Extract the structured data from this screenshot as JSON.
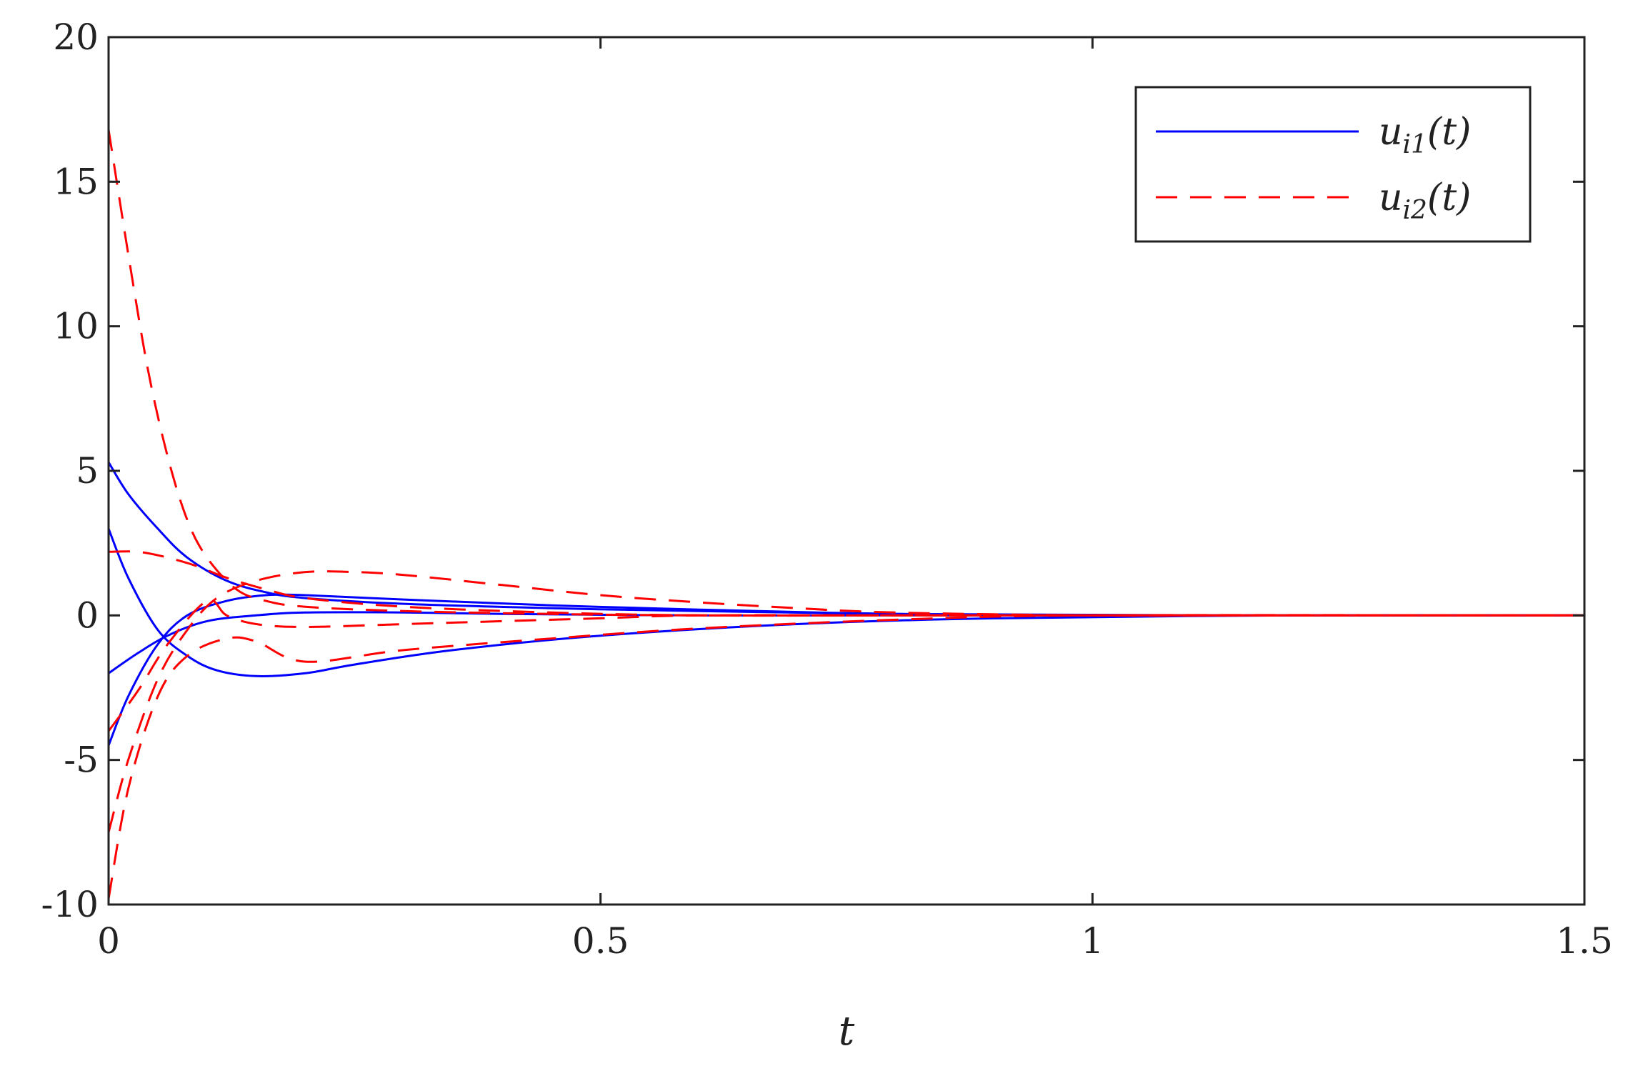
{
  "chart_data": {
    "type": "line",
    "title": "",
    "xlabel": "t",
    "ylabel": "",
    "xlim": [
      0,
      1.5
    ],
    "ylim": [
      -10,
      20
    ],
    "xticks": [
      0,
      0.5,
      1,
      1.5
    ],
    "xtick_labels": [
      "0",
      "0.5",
      "1",
      "1.5"
    ],
    "yticks": [
      -10,
      -5,
      0,
      5,
      10,
      15,
      20
    ],
    "ytick_labels": [
      "-10",
      "-5",
      "0",
      "5",
      "10",
      "15",
      "20"
    ],
    "grid": false,
    "legend": {
      "placement": "top-right",
      "entries": [
        {
          "label": "u",
          "sub": "i1",
          "suffix": "(t)",
          "color": "#0000ff",
          "dash": "solid"
        },
        {
          "label": "u",
          "sub": "i2",
          "suffix": "(t)",
          "color": "#ff0000",
          "dash": "dashed"
        }
      ]
    },
    "series": [
      {
        "group": "u_i1",
        "color": "#0000ff",
        "dash": "solid",
        "x": [
          0,
          0.02,
          0.05,
          0.08,
          0.12,
          0.16,
          0.2,
          0.3,
          0.45,
          0.6,
          0.8,
          1.0,
          1.2,
          1.5
        ],
        "y": [
          5.3,
          4.2,
          3.0,
          2.0,
          1.2,
          0.8,
          0.6,
          0.4,
          0.25,
          0.15,
          0.05,
          0.02,
          0.0,
          0.0
        ]
      },
      {
        "group": "u_i1",
        "color": "#0000ff",
        "dash": "solid",
        "x": [
          0,
          0.02,
          0.05,
          0.08,
          0.11,
          0.15,
          0.2,
          0.25,
          0.35,
          0.5,
          0.7,
          0.9,
          1.2,
          1.5
        ],
        "y": [
          3.0,
          1.3,
          -0.5,
          -1.4,
          -1.9,
          -2.1,
          -2.0,
          -1.7,
          -1.2,
          -0.7,
          -0.3,
          -0.1,
          0.0,
          0.0
        ]
      },
      {
        "group": "u_i1",
        "color": "#0000ff",
        "dash": "solid",
        "x": [
          0,
          0.03,
          0.06,
          0.1,
          0.15,
          0.2,
          0.3,
          0.4,
          0.6,
          0.8,
          1.0,
          1.5
        ],
        "y": [
          -2.0,
          -1.3,
          -0.7,
          -0.2,
          0.0,
          0.1,
          0.1,
          0.05,
          0.0,
          0.0,
          0.0,
          0.0
        ]
      },
      {
        "group": "u_i1",
        "color": "#0000ff",
        "dash": "solid",
        "x": [
          0,
          0.02,
          0.05,
          0.08,
          0.12,
          0.16,
          0.2,
          0.3,
          0.45,
          0.6,
          0.8,
          1.0,
          1.5
        ],
        "y": [
          -4.5,
          -2.8,
          -1.0,
          0.0,
          0.5,
          0.7,
          0.7,
          0.55,
          0.35,
          0.2,
          0.05,
          0.0,
          0.0
        ]
      },
      {
        "group": "u_i2",
        "color": "#ff0000",
        "dash": "dashed",
        "x": [
          0,
          0.02,
          0.04,
          0.06,
          0.08,
          0.1,
          0.13,
          0.16,
          0.2,
          0.3,
          0.45,
          0.6,
          0.8,
          1.0,
          1.5
        ],
        "y": [
          16.8,
          12.5,
          8.5,
          5.5,
          3.3,
          2.0,
          0.9,
          0.5,
          0.3,
          0.15,
          0.05,
          0.0,
          0.0,
          0.0,
          0.0
        ]
      },
      {
        "group": "u_i2",
        "color": "#ff0000",
        "dash": "dashed",
        "x": [
          0,
          0.03,
          0.06,
          0.09,
          0.12,
          0.16,
          0.2,
          0.3,
          0.45,
          0.6,
          0.8,
          1.0,
          1.5
        ],
        "y": [
          2.2,
          2.2,
          2.0,
          1.7,
          1.3,
          0.9,
          0.6,
          0.3,
          0.1,
          0.0,
          0.0,
          0.0,
          0.0
        ]
      },
      {
        "group": "u_i2",
        "color": "#ff0000",
        "dash": "dashed",
        "x": [
          0,
          0.02,
          0.05,
          0.08,
          0.11,
          0.15,
          0.2,
          0.25,
          0.3,
          0.4,
          0.5,
          0.6,
          0.7,
          0.8,
          1.0,
          1.2,
          1.5
        ],
        "y": [
          -7.5,
          -5.0,
          -2.2,
          -0.5,
          0.6,
          1.2,
          1.5,
          1.5,
          1.4,
          1.05,
          0.7,
          0.45,
          0.25,
          0.1,
          0.0,
          0.0,
          0.0
        ]
      },
      {
        "group": "u_i2",
        "color": "#ff0000",
        "dash": "dashed",
        "x": [
          0,
          0.02,
          0.05,
          0.08,
          0.12,
          0.15,
          0.2,
          0.3,
          0.45,
          0.6,
          0.8,
          1.0,
          1.5
        ],
        "y": [
          -9.8,
          -6.0,
          -2.8,
          -1.4,
          -0.8,
          -0.9,
          -1.6,
          -1.2,
          -0.8,
          -0.45,
          -0.15,
          0.0,
          0.0
        ]
      },
      {
        "group": "u_i2",
        "color": "#ff0000",
        "dash": "dashed",
        "x": [
          0,
          0.03,
          0.06,
          0.1,
          0.12,
          0.15,
          0.2,
          0.3,
          0.4,
          0.5,
          0.6,
          0.8,
          1.0,
          1.5
        ],
        "y": [
          -4.0,
          -2.6,
          -1.0,
          0.5,
          0.0,
          -0.3,
          -0.4,
          -0.3,
          -0.2,
          -0.1,
          0.0,
          0.0,
          0.0,
          0.0
        ]
      }
    ]
  }
}
